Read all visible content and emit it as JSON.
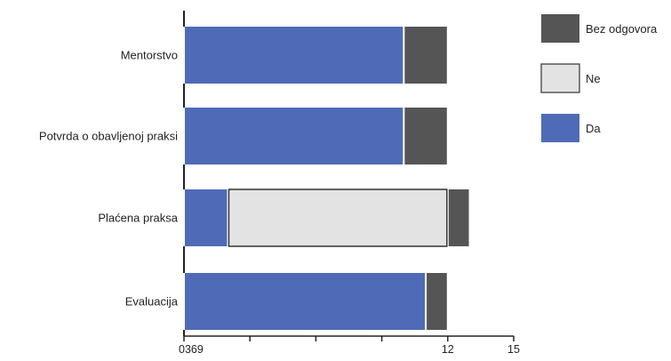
{
  "chart_data": {
    "type": "bar",
    "orientation": "horizontal",
    "stacked": true,
    "categories": [
      "Mentorstvo",
      "Potvrda o obavljenoj praksi",
      "Plaćena praksa",
      "Evaluacija"
    ],
    "series": [
      {
        "name": "Da",
        "values": [
          10,
          10,
          2,
          11
        ],
        "color": "#4f6bb8"
      },
      {
        "name": "Ne",
        "values": [
          0,
          0,
          10,
          0
        ],
        "color": "#e3e3e3"
      },
      {
        "name": "Bez odgovora",
        "values": [
          2,
          2,
          1,
          1
        ],
        "color": "#555555"
      }
    ],
    "x_ticks": [
      0,
      3,
      6,
      9,
      12,
      15
    ],
    "x_tick_labels": [
      "0369",
      "",
      "",
      "",
      "12",
      "15"
    ],
    "xlim": [
      0,
      15
    ],
    "grid": false,
    "legend_position": "top-right",
    "legend_order": [
      "Bez odgovora",
      "Ne",
      "Da"
    ]
  }
}
